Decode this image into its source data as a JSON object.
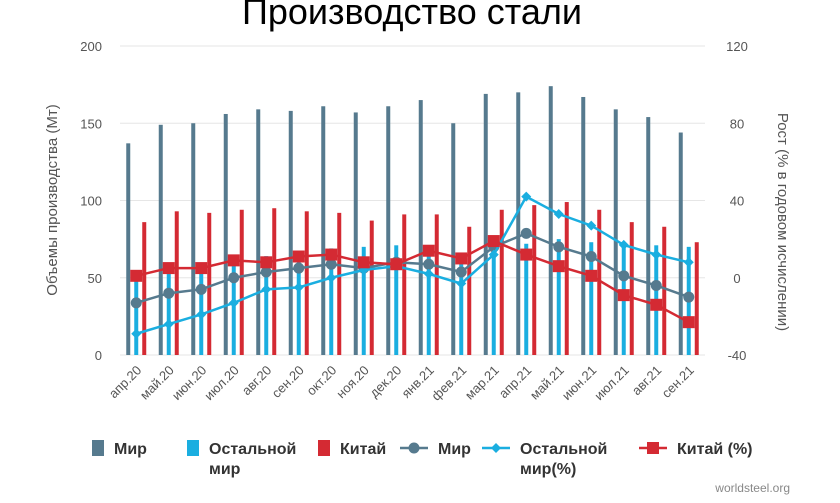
{
  "chart_data": {
    "type": "bar",
    "title": "Производство стали",
    "ylabel": "Объемы производства (Мт)",
    "y2label": "Рост (% в годовом исчислении)",
    "ylim": [
      0,
      200
    ],
    "yticks": [
      0,
      50,
      100,
      150,
      200
    ],
    "y2lim": [
      -40,
      120
    ],
    "y2ticks": [
      -40,
      0,
      40,
      80,
      120
    ],
    "grid": true,
    "legend_position": "bottom",
    "categories": [
      "апр.20",
      "май.20",
      "июн.20",
      "июл.20",
      "авг.20",
      "сен.20",
      "окт.20",
      "ноя.20",
      "дек.20",
      "янв.21",
      "фев.21",
      "мар.21",
      "апр.21",
      "май.21",
      "июн.21",
      "июл.21",
      "авг.21",
      "сен.21"
    ],
    "series": [
      {
        "name": "Мир",
        "kind": "bar",
        "axis": "left",
        "color": "#567a8e",
        "values": [
          137,
          149,
          150,
          156,
          159,
          158,
          161,
          157,
          161,
          165,
          150,
          169,
          170,
          174,
          167,
          159,
          154,
          144
        ]
      },
      {
        "name": "Остальной мир",
        "kind": "bar",
        "axis": "left",
        "color": "#1aaee0",
        "values": [
          51,
          56,
          56,
          63,
          64,
          66,
          69,
          70,
          71,
          65,
          64,
          77,
          72,
          75,
          73,
          73,
          71,
          70
        ]
      },
      {
        "name": "Китай",
        "kind": "bar",
        "axis": "left",
        "color": "#d42a33",
        "values": [
          86,
          93,
          92,
          94,
          95,
          93,
          92,
          87,
          91,
          91,
          83,
          94,
          97,
          99,
          94,
          86,
          83,
          73
        ]
      },
      {
        "name": "Мир",
        "kind": "line",
        "axis": "right",
        "color": "#567a8e",
        "marker": "circle",
        "values": [
          -13,
          -8,
          -6,
          0,
          3,
          5,
          7,
          5,
          8,
          7,
          3,
          16,
          23,
          16,
          11,
          1,
          -4,
          -10
        ]
      },
      {
        "name": "Остальной мир(%)",
        "kind": "line",
        "axis": "right",
        "color": "#1aaee0",
        "marker": "diamond",
        "values": [
          -29,
          -24,
          -19,
          -13,
          -6,
          -5,
          0,
          4,
          6,
          2,
          -3,
          12,
          42,
          33,
          27,
          17,
          12,
          8
        ]
      },
      {
        "name": "Китай (%)",
        "kind": "line",
        "axis": "right",
        "color": "#d42a33",
        "marker": "square",
        "values": [
          1,
          5,
          5,
          9,
          8,
          11,
          12,
          8,
          7,
          14,
          10,
          19,
          12,
          6,
          1,
          -9,
          -14,
          -23
        ]
      }
    ],
    "legend": [
      {
        "label": "Мир",
        "symbol": "bar",
        "color": "#567a8e"
      },
      {
        "label": "Остальной мир",
        "symbol": "bar",
        "color": "#1aaee0"
      },
      {
        "label": "Китай",
        "symbol": "bar",
        "color": "#d42a33"
      },
      {
        "label": "Мир",
        "symbol": "circle-line",
        "color": "#567a8e"
      },
      {
        "label": "Остальной мир(%)",
        "symbol": "diamond-line",
        "color": "#1aaee0"
      },
      {
        "label": "Китай (%)",
        "symbol": "square-line",
        "color": "#d42a33"
      }
    ],
    "source": "worldsteel.org"
  }
}
